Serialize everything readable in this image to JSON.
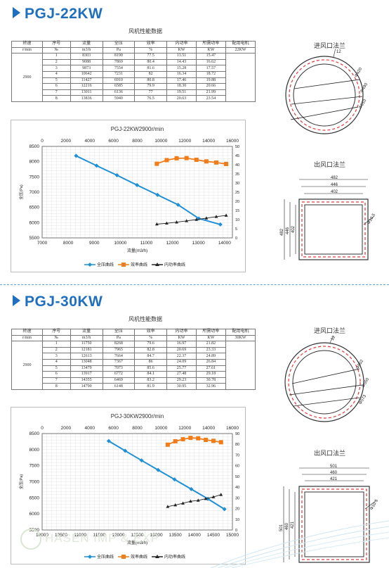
{
  "sections": [
    {
      "model": "PGJ-22KW",
      "table_title": "风机性能数据",
      "headers": [
        "转速",
        "序号",
        "流量",
        "全压",
        "效率",
        "内功率",
        "所需功率",
        "配用电机"
      ],
      "units": [
        "r/min",
        "№",
        "m3/h",
        "Pa",
        "%",
        "KW",
        "KW",
        "22KW"
      ],
      "speed": "2900",
      "rows": [
        [
          "1",
          "8303",
          "8190",
          "77.5",
          "13.51",
          "15.47"
        ],
        [
          "2",
          "9088",
          "7869",
          "80.4",
          "14.43",
          "16.62"
        ],
        [
          "3",
          "9873",
          "7554",
          "81.6",
          "15.28",
          "17.57"
        ],
        [
          "4",
          "10642",
          "7231",
          "82",
          "16.34",
          "18.72"
        ],
        [
          "5",
          "11427",
          "6910",
          "80.8",
          "17.46",
          "19.88"
        ],
        [
          "6",
          "12216",
          "6585",
          "79.9",
          "18.30",
          "20.66"
        ],
        [
          "7",
          "13011",
          "6136",
          "77",
          "19.51",
          "21.99"
        ],
        [
          "8",
          "13836",
          "5940",
          "76.5",
          "20.63",
          "23.54"
        ]
      ],
      "inlet_label": "进风口法兰",
      "outlet_label": "出风口法兰",
      "inlet_dims": [
        "12",
        "Φ420",
        "Φ490",
        "Φ510"
      ],
      "outlet_dims": [
        "482",
        "446",
        "402",
        "482",
        "446",
        "402",
        "Φ10.5"
      ],
      "legend": [
        "全压曲线",
        "效率曲线",
        "内功率曲线"
      ]
    },
    {
      "model": "PGJ-30KW",
      "table_title": "风机性能数据",
      "headers": [
        "转速",
        "序号",
        "流量",
        "全压",
        "效率",
        "内功率",
        "所需功率",
        "配用电机"
      ],
      "units": [
        "r/min",
        "№",
        "m3/h",
        "Pa",
        "%",
        "KW",
        "KW",
        "30KW"
      ],
      "speed": "2900",
      "rows": [
        [
          "1",
          "11750",
          "8268",
          "79.6",
          "16.97",
          "21.82"
        ],
        [
          "2",
          "12181",
          "7965",
          "82.8",
          "20.69",
          "23.33"
        ],
        [
          "3",
          "12613",
          "7664",
          "84.7",
          "22.37",
          "24.89"
        ],
        [
          "4",
          "13048",
          "7367",
          "86",
          "24.09",
          "26.84"
        ],
        [
          "5",
          "13479",
          "7073",
          "85.6",
          "25.77",
          "27.61"
        ],
        [
          "6",
          "13917",
          "6772",
          "84.1",
          "27.48",
          "29.18"
        ],
        [
          "7",
          "14355",
          "6469",
          "83.2",
          "29.23",
          "30.78"
        ],
        [
          "8",
          "14790",
          "6148",
          "81.9",
          "30.95",
          "32.96"
        ]
      ],
      "inlet_label": "进风口法兰",
      "outlet_label": "出风口法兰",
      "inlet_dims": [
        "12",
        "Φ502",
        "Φ550",
        "Φ573"
      ],
      "outlet_dims": [
        "501",
        "460",
        "421",
        "501",
        "460",
        "421",
        "Φ10.5"
      ],
      "legend": [
        "全压曲线",
        "效率曲线",
        "内功率曲线"
      ]
    }
  ],
  "watermark": "HASEN IMP & EXP",
  "chart_data": [
    {
      "type": "line",
      "title": "PGJ-22KW2900r/min",
      "xlabel": "流量(m3/h)",
      "ylabel": "全压(Pa)",
      "y2label": "效率(%)/功率(kW)/比声级",
      "x_bottom_ticks": [
        "7000",
        "8000",
        "9000",
        "10000",
        "11000",
        "12000",
        "13000",
        "14000"
      ],
      "x_top_ticks": [
        "0",
        "2000",
        "4000",
        "6000",
        "8000",
        "10000",
        "12000",
        "14000",
        "16000"
      ],
      "y_ticks": [
        "5500",
        "6000",
        "6500",
        "7000",
        "7500",
        "8000",
        "8500"
      ],
      "y2_ticks": [
        "0",
        "5",
        "10",
        "15",
        "20",
        "25",
        "30",
        "35",
        "40",
        "45",
        "50"
      ],
      "xlim": [
        7000,
        14300
      ],
      "ylim": [
        5500,
        8500
      ],
      "y2lim": [
        0,
        50
      ],
      "colors": {
        "pressure": "#1f8fd6",
        "efficiency": "#f07d1a",
        "power": "#222222"
      },
      "series": [
        {
          "name": "全压曲线",
          "axis": "left",
          "x": [
            8303,
            9088,
            9873,
            10642,
            11427,
            12216,
            13011,
            13836
          ],
          "y": [
            8190,
            7869,
            7554,
            7231,
            6910,
            6585,
            6136,
            5940
          ]
        },
        {
          "name": "效率曲线",
          "axis": "right",
          "x": [
            11400,
            11780,
            12160,
            12540,
            12920,
            13300,
            13680,
            14060
          ],
          "y": [
            40.5,
            42.5,
            43.5,
            43.6,
            42.7,
            41.8,
            41.2,
            40.4
          ]
        },
        {
          "name": "内功率曲线",
          "axis": "right",
          "x": [
            11400,
            11780,
            12160,
            12540,
            12920,
            13300,
            13680,
            14060
          ],
          "y": [
            7.5,
            8.0,
            8.6,
            9.3,
            10.0,
            10.8,
            11.6,
            12.3
          ]
        }
      ]
    },
    {
      "type": "line",
      "title": "PGJ-30KW2900r/min",
      "xlabel": "流量(m3/h)",
      "ylabel": "全压(Pa)",
      "y2label": "效率(%)/功率(kW)/比声级",
      "x_bottom_ticks": [
        "10000",
        "10500",
        "11000",
        "11500",
        "12000",
        "12500",
        "13000",
        "13500",
        "14000",
        "14500",
        "15000"
      ],
      "x_top_ticks": [
        "0",
        "2000",
        "4000",
        "6000",
        "8000",
        "10000",
        "12000",
        "14000",
        "16000"
      ],
      "y_ticks": [
        "5500",
        "6000",
        "6500",
        "7000",
        "7500",
        "8000",
        "8500"
      ],
      "y2_ticks": [
        "0",
        "10",
        "20",
        "30",
        "40",
        "50",
        "60",
        "70",
        "80",
        "90"
      ],
      "xlim": [
        10000,
        15000
      ],
      "ylim": [
        5500,
        8500
      ],
      "y2lim": [
        0,
        90
      ],
      "colors": {
        "pressure": "#1f8fd6",
        "efficiency": "#f07d1a",
        "power": "#222222"
      },
      "series": [
        {
          "name": "全压曲线",
          "axis": "left",
          "x": [
            11750,
            12181,
            12613,
            13048,
            13479,
            13917,
            14355,
            14790
          ],
          "y": [
            8268,
            7965,
            7664,
            7367,
            7073,
            6772,
            6469,
            6148
          ]
        },
        {
          "name": "效率曲线",
          "axis": "right",
          "x": [
            13300,
            13500,
            13700,
            13900,
            14100,
            14300,
            14500,
            14700
          ],
          "y": [
            79.6,
            82.8,
            84.7,
            86,
            85.6,
            84.1,
            83.2,
            81.9
          ]
        },
        {
          "name": "内功率曲线",
          "axis": "right",
          "x": [
            13300,
            13500,
            13700,
            13900,
            14100,
            14300,
            14500,
            14700
          ],
          "y": [
            21.8,
            23.3,
            24.9,
            26.8,
            27.6,
            29.2,
            30.8,
            33.0
          ]
        }
      ]
    }
  ]
}
